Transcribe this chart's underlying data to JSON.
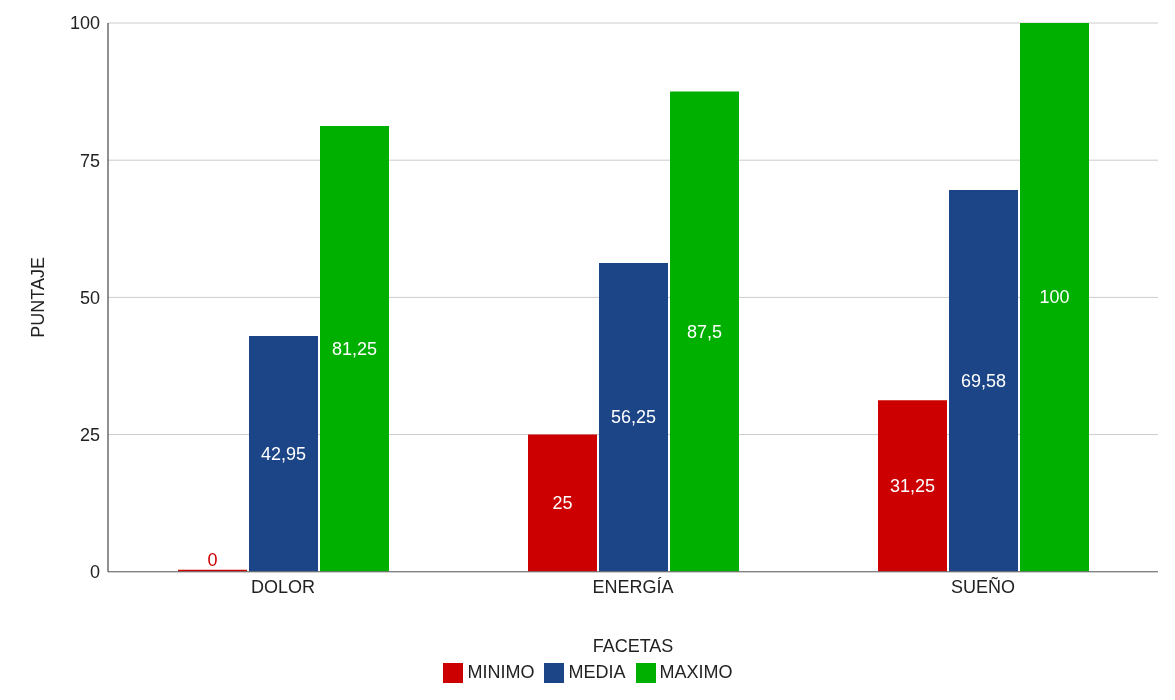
{
  "chart_data": {
    "type": "bar",
    "xlabel": "FACETAS",
    "ylabel": "PUNTAJE",
    "categories": [
      "DOLOR",
      "ENERGÍA",
      "SUEÑO"
    ],
    "series": [
      {
        "name": "MINIMO",
        "color": "#cc0000",
        "values": [
          0,
          25,
          31.25
        ],
        "value_labels": [
          "0",
          "25",
          "31,25"
        ]
      },
      {
        "name": "MEDIA",
        "color": "#1c4587",
        "values": [
          42.95,
          56.25,
          69.58
        ],
        "value_labels": [
          "42,95",
          "56,25",
          "69,58"
        ]
      },
      {
        "name": "MAXIMO",
        "color": "#00b000",
        "values": [
          81.25,
          87.5,
          100
        ],
        "value_labels": [
          "81,25",
          "87,5",
          "100"
        ]
      }
    ],
    "ylim": [
      0,
      100
    ],
    "yticks": [
      0,
      25,
      50,
      75,
      100
    ],
    "grid": "y",
    "legend": "bottom"
  }
}
